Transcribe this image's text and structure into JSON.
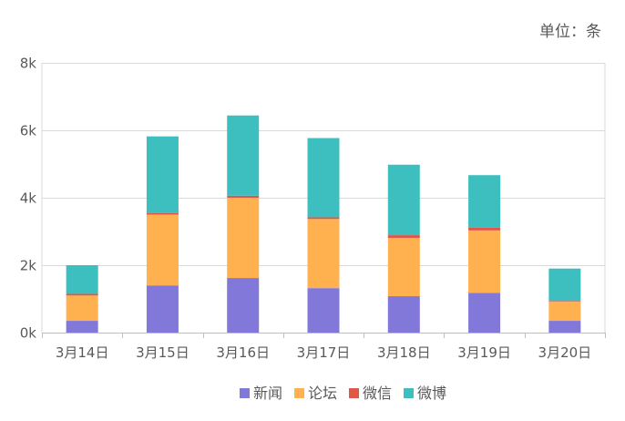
{
  "unit_label": "单位：条",
  "chart_data": {
    "type": "bar",
    "stacked": true,
    "categories": [
      "3月14日",
      "3月15日",
      "3月16日",
      "3月17日",
      "3月18日",
      "3月19日",
      "3月20日"
    ],
    "series": [
      {
        "name": "新闻",
        "color": "#8278D9",
        "values": [
          350,
          1400,
          1620,
          1320,
          1080,
          1180,
          350
        ]
      },
      {
        "name": "论坛",
        "color": "#FFB14F",
        "values": [
          750,
          2100,
          2380,
          2050,
          1730,
          1850,
          570
        ]
      },
      {
        "name": "微信",
        "color": "#E05747",
        "values": [
          50,
          50,
          60,
          50,
          80,
          80,
          20
        ]
      },
      {
        "name": "微博",
        "color": "#3DBFBF",
        "values": [
          850,
          2270,
          2380,
          2350,
          2090,
          1560,
          960
        ]
      }
    ],
    "ylim": [
      0,
      8000
    ],
    "yticks": [
      "0k",
      "2k",
      "4k",
      "6k",
      "8k"
    ],
    "ytick_values": [
      0,
      2000,
      4000,
      6000,
      8000
    ],
    "grid": true,
    "legend_position": "bottom"
  }
}
